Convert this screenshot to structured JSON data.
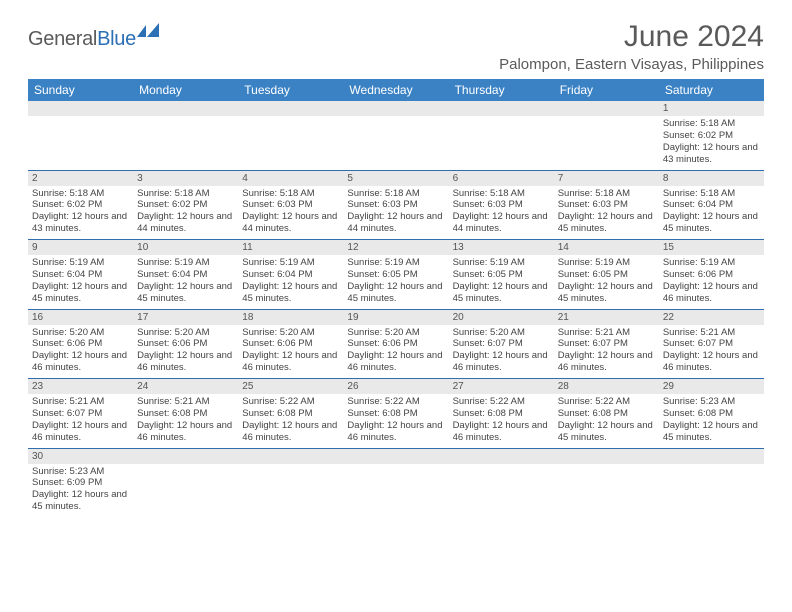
{
  "brand": {
    "word1": "General",
    "word2": "Blue"
  },
  "title": "June 2024",
  "location": "Palompon, Eastern Visayas, Philippines",
  "colors": {
    "header_bg": "#3b82c4",
    "header_text": "#ffffff",
    "row_divider": "#2f6fae",
    "daynum_bg": "#e9e9e9",
    "text": "#444444",
    "title_text": "#5a5a5a",
    "brand_blue": "#2b6fb5"
  },
  "day_headers": [
    "Sunday",
    "Monday",
    "Tuesday",
    "Wednesday",
    "Thursday",
    "Friday",
    "Saturday"
  ],
  "weeks": [
    [
      null,
      null,
      null,
      null,
      null,
      null,
      {
        "n": "1",
        "sr": "5:18 AM",
        "ss": "6:02 PM",
        "dl": "12 hours and 43 minutes."
      }
    ],
    [
      {
        "n": "2",
        "sr": "5:18 AM",
        "ss": "6:02 PM",
        "dl": "12 hours and 43 minutes."
      },
      {
        "n": "3",
        "sr": "5:18 AM",
        "ss": "6:02 PM",
        "dl": "12 hours and 44 minutes."
      },
      {
        "n": "4",
        "sr": "5:18 AM",
        "ss": "6:03 PM",
        "dl": "12 hours and 44 minutes."
      },
      {
        "n": "5",
        "sr": "5:18 AM",
        "ss": "6:03 PM",
        "dl": "12 hours and 44 minutes."
      },
      {
        "n": "6",
        "sr": "5:18 AM",
        "ss": "6:03 PM",
        "dl": "12 hours and 44 minutes."
      },
      {
        "n": "7",
        "sr": "5:18 AM",
        "ss": "6:03 PM",
        "dl": "12 hours and 45 minutes."
      },
      {
        "n": "8",
        "sr": "5:18 AM",
        "ss": "6:04 PM",
        "dl": "12 hours and 45 minutes."
      }
    ],
    [
      {
        "n": "9",
        "sr": "5:19 AM",
        "ss": "6:04 PM",
        "dl": "12 hours and 45 minutes."
      },
      {
        "n": "10",
        "sr": "5:19 AM",
        "ss": "6:04 PM",
        "dl": "12 hours and 45 minutes."
      },
      {
        "n": "11",
        "sr": "5:19 AM",
        "ss": "6:04 PM",
        "dl": "12 hours and 45 minutes."
      },
      {
        "n": "12",
        "sr": "5:19 AM",
        "ss": "6:05 PM",
        "dl": "12 hours and 45 minutes."
      },
      {
        "n": "13",
        "sr": "5:19 AM",
        "ss": "6:05 PM",
        "dl": "12 hours and 45 minutes."
      },
      {
        "n": "14",
        "sr": "5:19 AM",
        "ss": "6:05 PM",
        "dl": "12 hours and 45 minutes."
      },
      {
        "n": "15",
        "sr": "5:19 AM",
        "ss": "6:06 PM",
        "dl": "12 hours and 46 minutes."
      }
    ],
    [
      {
        "n": "16",
        "sr": "5:20 AM",
        "ss": "6:06 PM",
        "dl": "12 hours and 46 minutes."
      },
      {
        "n": "17",
        "sr": "5:20 AM",
        "ss": "6:06 PM",
        "dl": "12 hours and 46 minutes."
      },
      {
        "n": "18",
        "sr": "5:20 AM",
        "ss": "6:06 PM",
        "dl": "12 hours and 46 minutes."
      },
      {
        "n": "19",
        "sr": "5:20 AM",
        "ss": "6:06 PM",
        "dl": "12 hours and 46 minutes."
      },
      {
        "n": "20",
        "sr": "5:20 AM",
        "ss": "6:07 PM",
        "dl": "12 hours and 46 minutes."
      },
      {
        "n": "21",
        "sr": "5:21 AM",
        "ss": "6:07 PM",
        "dl": "12 hours and 46 minutes."
      },
      {
        "n": "22",
        "sr": "5:21 AM",
        "ss": "6:07 PM",
        "dl": "12 hours and 46 minutes."
      }
    ],
    [
      {
        "n": "23",
        "sr": "5:21 AM",
        "ss": "6:07 PM",
        "dl": "12 hours and 46 minutes."
      },
      {
        "n": "24",
        "sr": "5:21 AM",
        "ss": "6:08 PM",
        "dl": "12 hours and 46 minutes."
      },
      {
        "n": "25",
        "sr": "5:22 AM",
        "ss": "6:08 PM",
        "dl": "12 hours and 46 minutes."
      },
      {
        "n": "26",
        "sr": "5:22 AM",
        "ss": "6:08 PM",
        "dl": "12 hours and 46 minutes."
      },
      {
        "n": "27",
        "sr": "5:22 AM",
        "ss": "6:08 PM",
        "dl": "12 hours and 46 minutes."
      },
      {
        "n": "28",
        "sr": "5:22 AM",
        "ss": "6:08 PM",
        "dl": "12 hours and 45 minutes."
      },
      {
        "n": "29",
        "sr": "5:23 AM",
        "ss": "6:08 PM",
        "dl": "12 hours and 45 minutes."
      }
    ],
    [
      {
        "n": "30",
        "sr": "5:23 AM",
        "ss": "6:09 PM",
        "dl": "12 hours and 45 minutes."
      },
      null,
      null,
      null,
      null,
      null,
      null
    ]
  ],
  "labels": {
    "sunrise": "Sunrise:",
    "sunset": "Sunset:",
    "daylight": "Daylight:"
  }
}
